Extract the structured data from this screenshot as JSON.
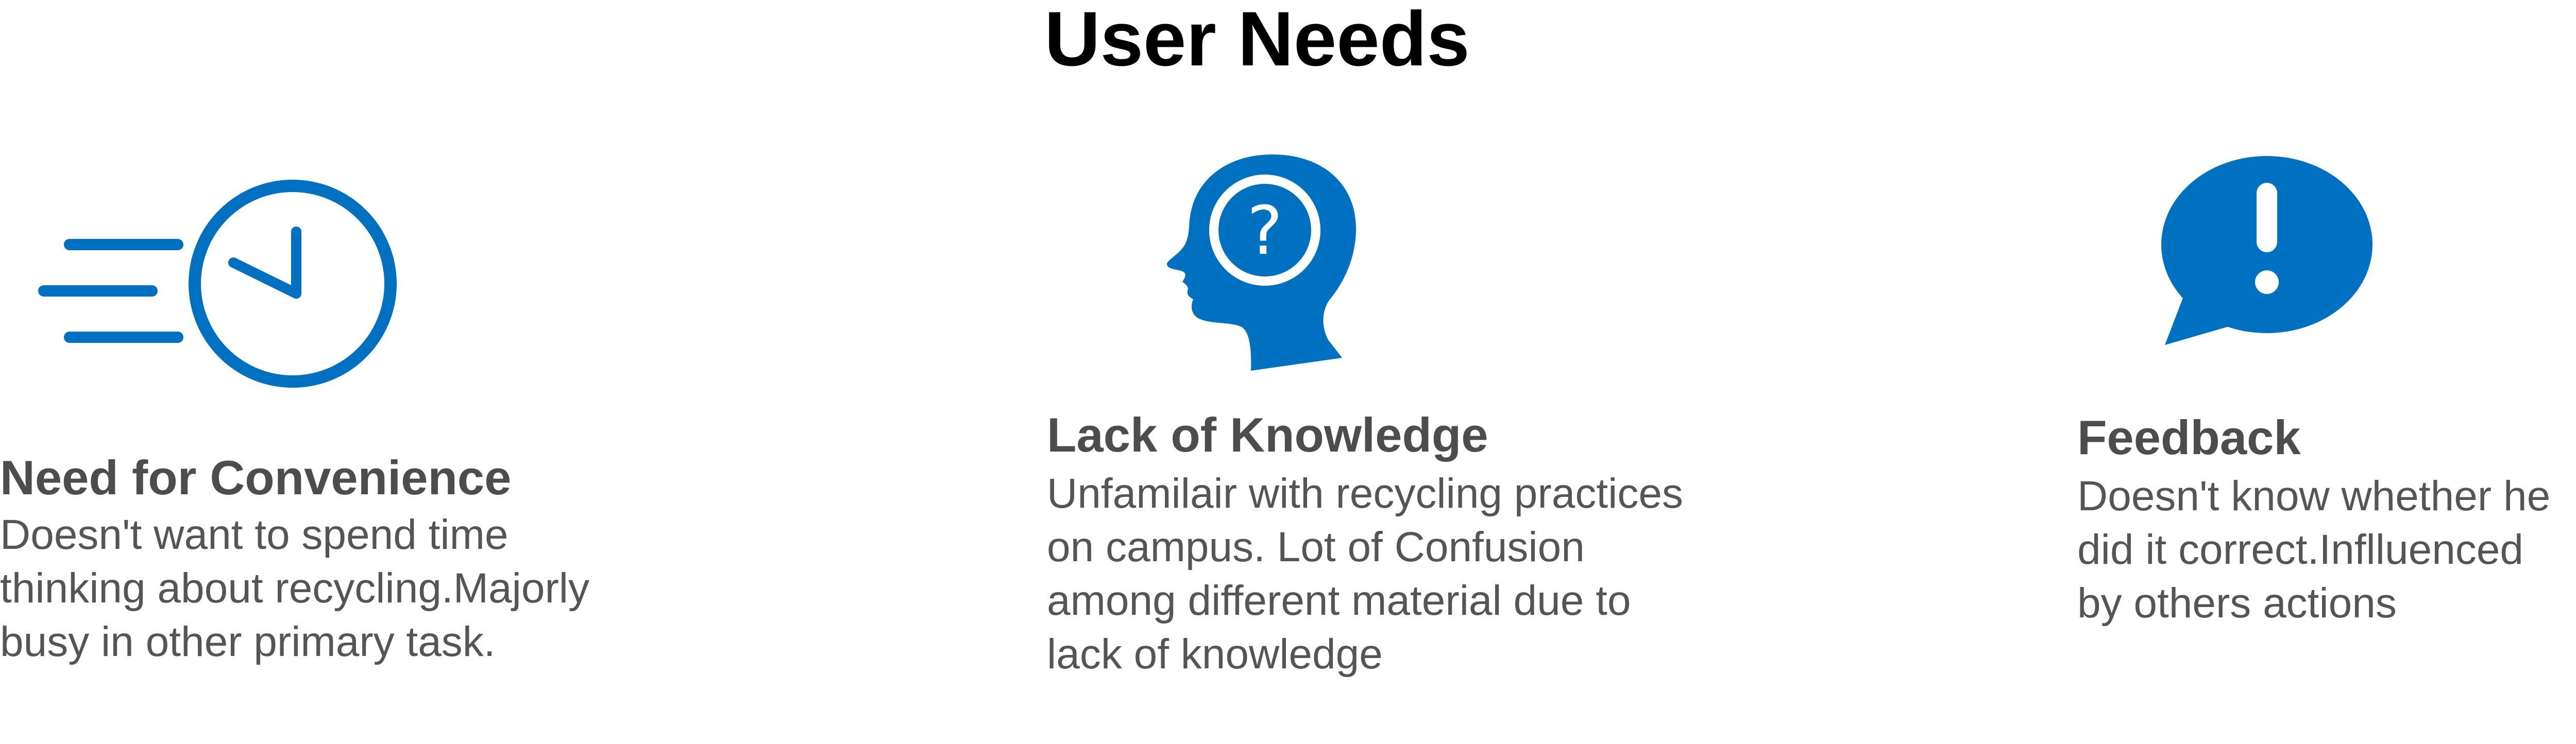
{
  "page": {
    "title": "User Needs",
    "accent_color": "#0070c0",
    "heading_color": "#4d4d4d",
    "text_color": "#555555"
  },
  "needs": [
    {
      "icon": "fast-clock-icon",
      "title": "Need for Convenience",
      "description": "Doesn't want to spend time\nthinking about recycling.Majorly\nbusy in other primary task."
    },
    {
      "icon": "head-question-icon",
      "title": "Lack of Knowledge",
      "description": "Unfamilair with recycling practices\non campus. Lot of Confusion\namong different material due to\nlack of knowledge"
    },
    {
      "icon": "speech-bubble-exclamation-icon",
      "title": "Feedback",
      "description": "Doesn't know whether he\ndid it correct.Inflluenced\nby others actions"
    }
  ]
}
